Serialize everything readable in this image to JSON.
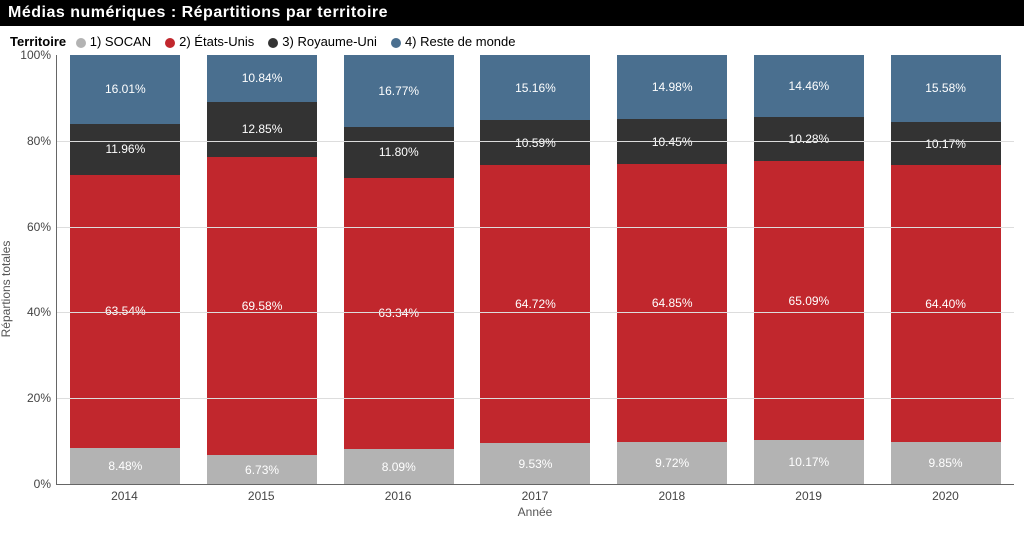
{
  "title": "Médias numériques : Répartitions par territoire",
  "legend_label": "Territoire",
  "series": [
    {
      "key": "socan",
      "name": "1) SOCAN",
      "color": "#b3b3b3"
    },
    {
      "key": "us",
      "name": "2) États-Unis",
      "color": "#c1272d"
    },
    {
      "key": "uk",
      "name": "3) Royaume-Uni",
      "color": "#333333"
    },
    {
      "key": "row",
      "name": "4) Reste de monde",
      "color": "#4a6f8f"
    }
  ],
  "y_axis": {
    "label": "Répartions totales",
    "min": 0,
    "max": 100,
    "ticks": [
      0,
      20,
      40,
      60,
      80,
      100
    ],
    "suffix": "%"
  },
  "x_axis": {
    "label": "Année",
    "categories": [
      "2014",
      "2015",
      "2016",
      "2017",
      "2018",
      "2019",
      "2020"
    ]
  },
  "data": {
    "2014": {
      "socan": 8.48,
      "us": 63.54,
      "uk": 11.96,
      "row": 16.01
    },
    "2015": {
      "socan": 6.73,
      "us": 69.58,
      "uk": 12.85,
      "row": 10.84
    },
    "2016": {
      "socan": 8.09,
      "us": 63.34,
      "uk": 11.8,
      "row": 16.77
    },
    "2017": {
      "socan": 9.53,
      "us": 64.72,
      "uk": 10.59,
      "row": 15.16
    },
    "2018": {
      "socan": 9.72,
      "us": 64.85,
      "uk": 10.45,
      "row": 14.98
    },
    "2019": {
      "socan": 10.17,
      "us": 65.09,
      "uk": 10.28,
      "row": 14.46
    },
    "2020": {
      "socan": 9.85,
      "us": 64.4,
      "uk": 10.17,
      "row": 15.58
    }
  },
  "bar_label_color": "#ffffff",
  "bar_label_fontsize": 12,
  "background_color": "#ffffff",
  "grid_color": "#dddddd",
  "axis_color": "#666666",
  "tick_fontsize": 12
}
